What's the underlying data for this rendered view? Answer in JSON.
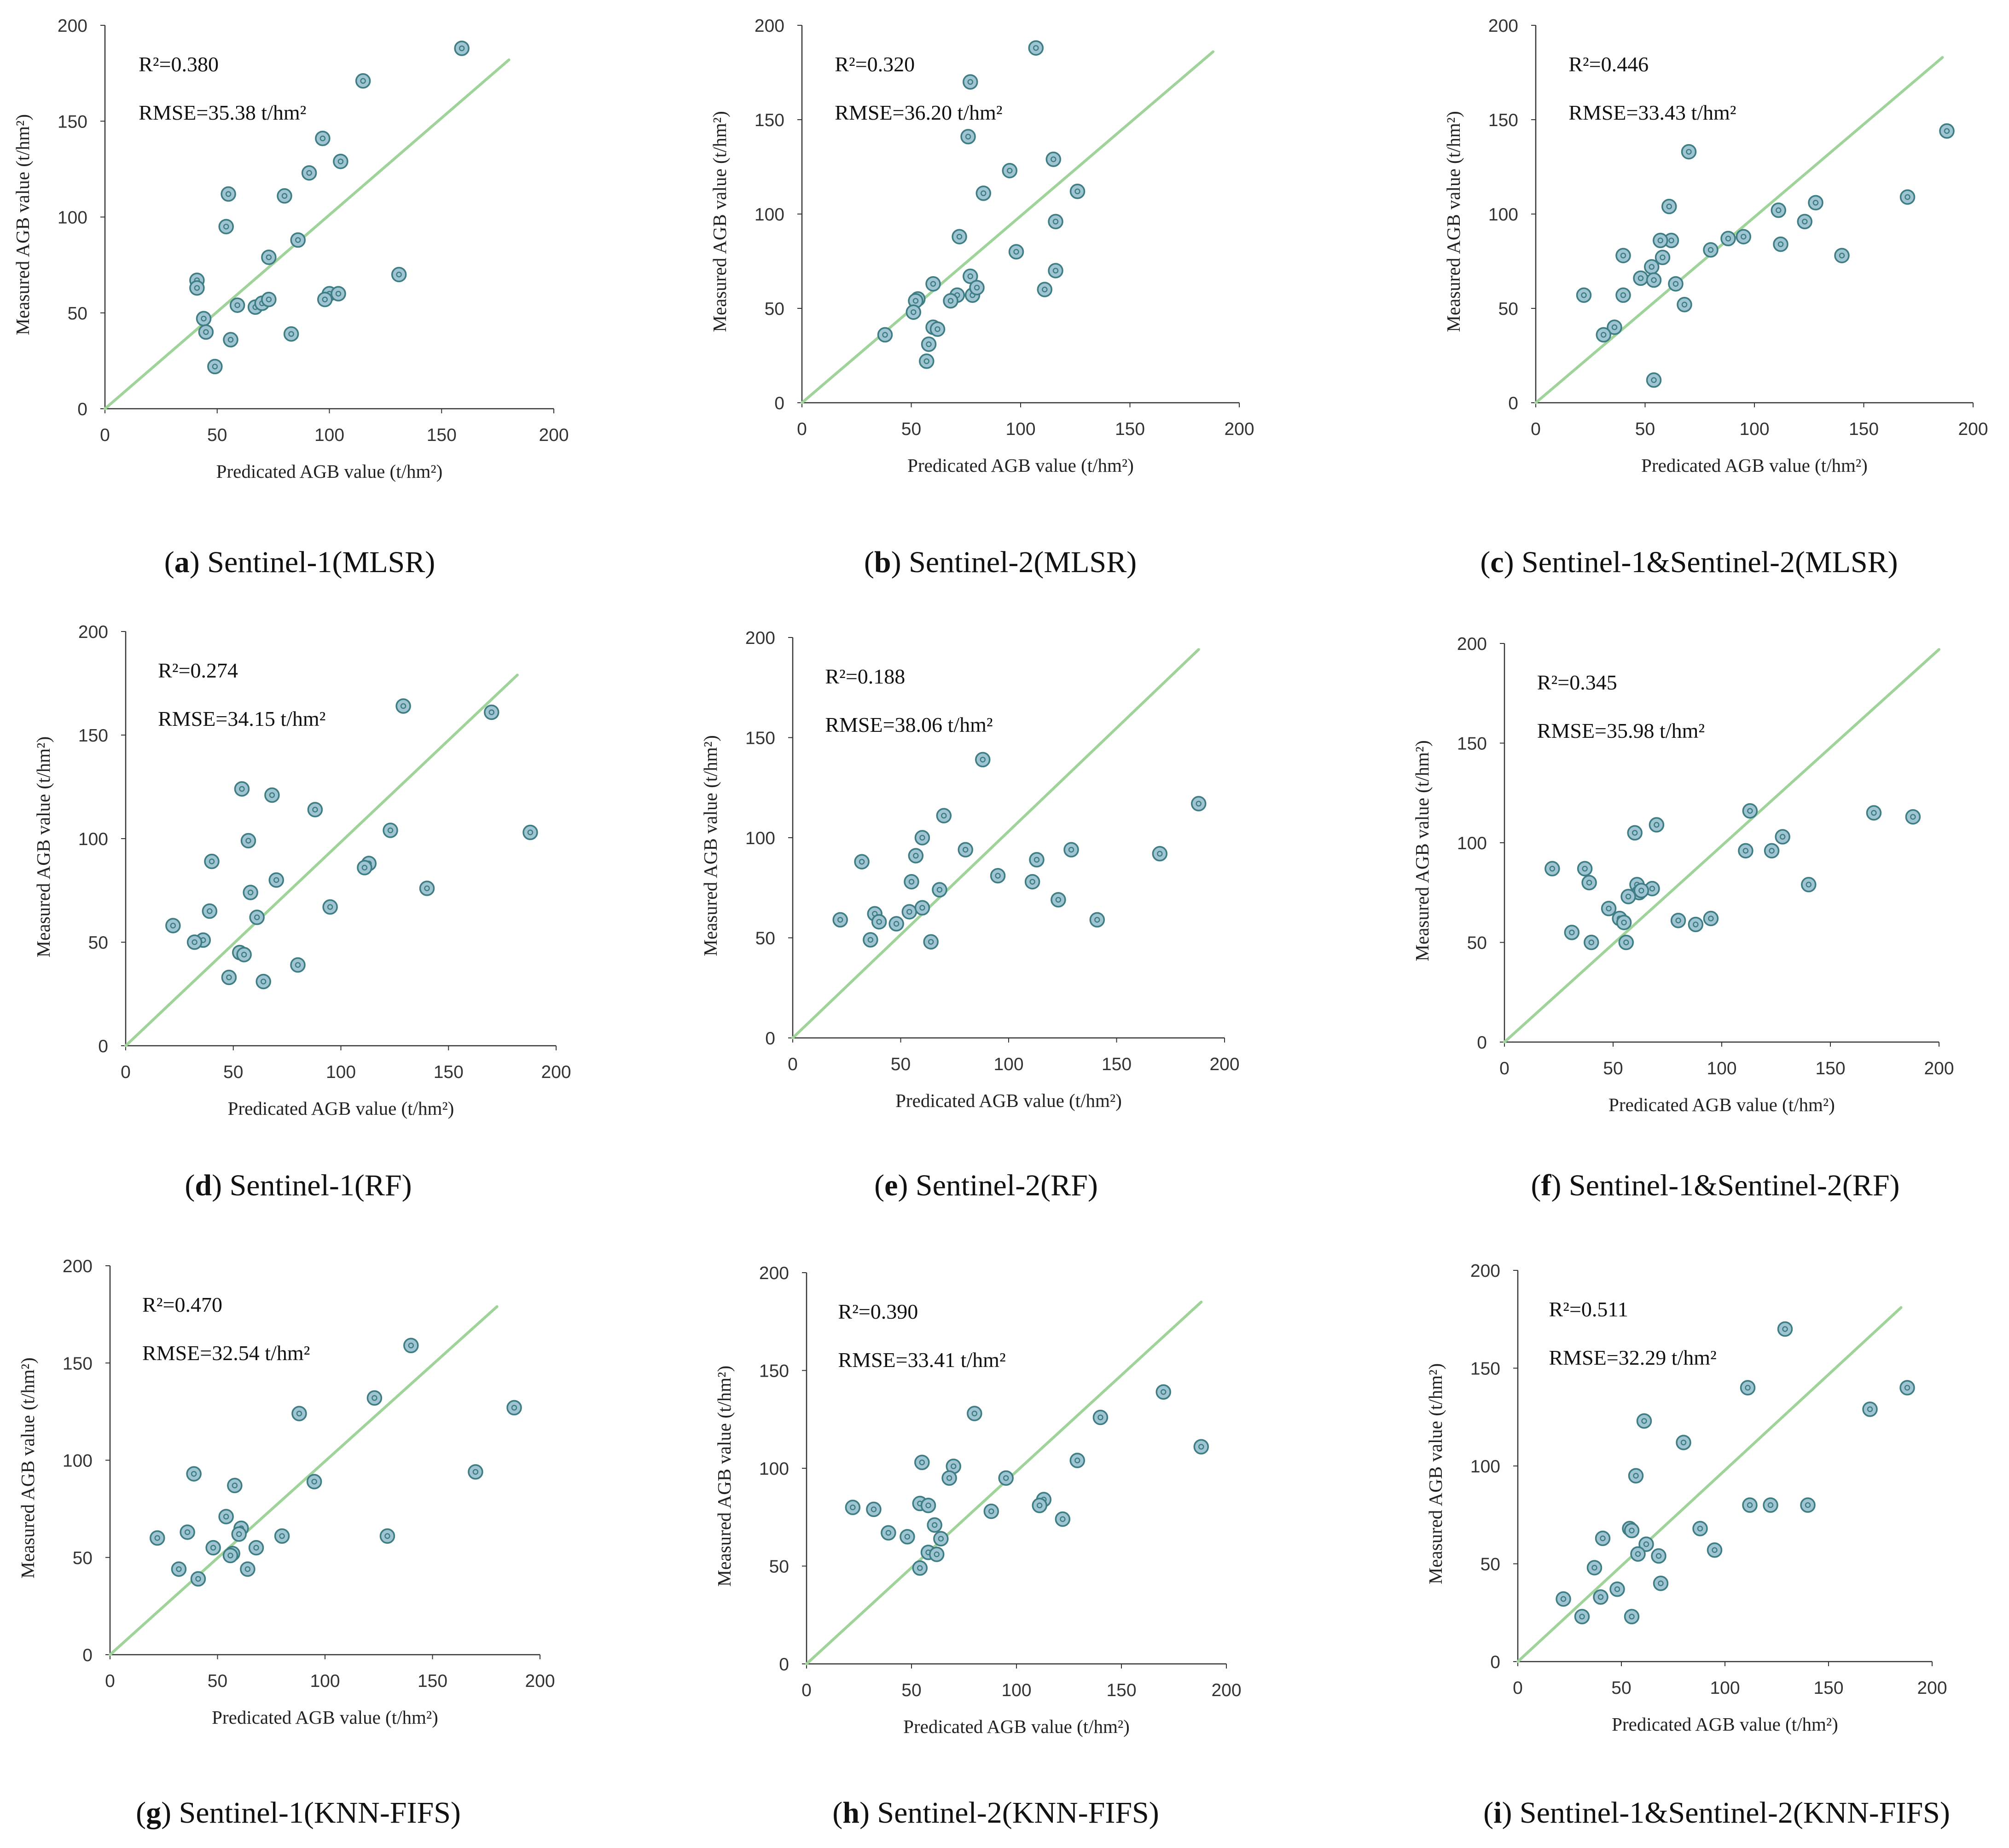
{
  "figure": {
    "colors": {
      "fit_line": "#9fd39a",
      "point_fill": "#9fc5d3",
      "point_stroke": "#3d7d83",
      "axis": "#333333"
    },
    "marker_icon": "double-circle"
  },
  "chart_data": [
    {
      "type": "scatter",
      "caption_letter": "a",
      "caption_text": "Sentinel-1(MLSR)",
      "xlabel": "Predicated AGB value (t/hm²)",
      "ylabel": "Measured AGB value (t/hm²)",
      "xlim": [
        0,
        200
      ],
      "ylim": [
        0,
        200
      ],
      "xticks": [
        "0",
        "50",
        "100",
        "150",
        "200"
      ],
      "yticks": [
        "0",
        "50",
        "100",
        "150",
        "200"
      ],
      "r2": "R²=0.380",
      "rmse": "RMSE=35.38 t/hm²",
      "fit_line": [
        [
          0,
          0
        ],
        [
          180,
          182
        ]
      ],
      "x": [
        159,
        115,
        97,
        91,
        105,
        55,
        80,
        54,
        86,
        73,
        41,
        41,
        44,
        59,
        67,
        70,
        73,
        100,
        104,
        98,
        131,
        45,
        56,
        83,
        49
      ],
      "y": [
        188,
        171,
        141,
        123,
        129,
        112,
        111,
        95,
        88,
        79,
        67,
        63,
        47,
        54,
        53,
        55,
        57,
        60,
        60,
        57,
        70,
        40,
        36,
        39,
        22
      ]
    },
    {
      "type": "scatter",
      "caption_letter": "b",
      "caption_text": "Sentinel-2(MLSR)",
      "xlabel": "Predicated AGB value (t/hm²)",
      "ylabel": "Measured AGB value (t/hm²)",
      "xlim": [
        0,
        200
      ],
      "ylim": [
        0,
        200
      ],
      "xticks": [
        "0",
        "50",
        "100",
        "150",
        "200"
      ],
      "yticks": [
        "0",
        "50",
        "100",
        "150",
        "200"
      ],
      "r2": "R²=0.320",
      "rmse": "RMSE=36.20 t/hm²",
      "fit_line": [
        [
          0,
          0
        ],
        [
          188,
          186
        ]
      ],
      "x": [
        107,
        77,
        76,
        95,
        115,
        126,
        83,
        72,
        116,
        98,
        77,
        60,
        53,
        52,
        51,
        71,
        68,
        78,
        80,
        111,
        116,
        60,
        62,
        38,
        58,
        57
      ],
      "y": [
        188,
        170,
        141,
        123,
        129,
        112,
        111,
        88,
        96,
        80,
        67,
        63,
        55,
        54,
        48,
        57,
        54,
        57,
        61,
        60,
        70,
        40,
        39,
        36,
        31,
        22
      ]
    },
    {
      "type": "scatter",
      "caption_letter": "c",
      "caption_text": "Sentinel-1&Sentinel-2(MLSR)",
      "xlabel": "Predicated AGB value (t/hm²)",
      "ylabel": "Measured AGB value (t/hm²)",
      "xlim": [
        0,
        200
      ],
      "ylim": [
        0,
        200
      ],
      "xticks": [
        "0",
        "50",
        "100",
        "150",
        "200"
      ],
      "yticks": [
        "0",
        "50",
        "100",
        "150",
        "200"
      ],
      "r2": "R²=0.446",
      "rmse": "RMSE=33.43 t/hm²",
      "fit_line": [
        [
          0,
          0
        ],
        [
          186,
          183
        ]
      ],
      "x": [
        188,
        70,
        170,
        111,
        128,
        123,
        112,
        140,
        95,
        88,
        80,
        61,
        62,
        57,
        58,
        40,
        40,
        48,
        53,
        54,
        64,
        22,
        68,
        36,
        31,
        54
      ],
      "y": [
        144,
        133,
        109,
        102,
        106,
        96,
        84,
        78,
        88,
        87,
        81,
        104,
        86,
        86,
        77,
        78,
        57,
        66,
        72,
        65,
        63,
        57,
        52,
        40,
        36,
        12
      ]
    },
    {
      "type": "scatter",
      "caption_letter": "d",
      "caption_text": "Sentinel-1(RF)",
      "xlabel": "Predicated AGB value (t/hm²)",
      "ylabel": "Measured AGB value (t/hm²)",
      "xlim": [
        0,
        200
      ],
      "ylim": [
        0,
        200
      ],
      "xticks": [
        "0",
        "50",
        "100",
        "150",
        "200"
      ],
      "yticks": [
        "0",
        "50",
        "100",
        "150",
        "200"
      ],
      "r2": "R²=0.274",
      "rmse": "RMSE=34.15 t/hm²",
      "fit_line": [
        [
          0,
          0
        ],
        [
          182,
          179
        ]
      ],
      "x": [
        129,
        170,
        54,
        68,
        88,
        123,
        188,
        113,
        111,
        57,
        40,
        140,
        70,
        39,
        58,
        61,
        95,
        22,
        36,
        32,
        53,
        55,
        80,
        48,
        64
      ],
      "y": [
        164,
        161,
        124,
        121,
        114,
        104,
        103,
        88,
        86,
        99,
        89,
        76,
        80,
        65,
        74,
        62,
        67,
        58,
        51,
        50,
        45,
        44,
        39,
        33,
        31
      ]
    },
    {
      "type": "scatter",
      "caption_letter": "e",
      "caption_text": "Sentinel-2(RF)",
      "xlabel": "Predicated AGB value (t/hm²)",
      "ylabel": "Measured AGB value (t/hm²)",
      "xlim": [
        0,
        200
      ],
      "ylim": [
        0,
        200
      ],
      "xticks": [
        "0",
        "50",
        "100",
        "150",
        "200"
      ],
      "yticks": [
        "0",
        "50",
        "100",
        "150",
        "200"
      ],
      "r2": "R²=0.188",
      "rmse": "RMSE=38.06 t/hm²",
      "fit_line": [
        [
          0,
          0
        ],
        [
          188,
          194
        ]
      ],
      "x": [
        88,
        188,
        70,
        60,
        80,
        113,
        129,
        170,
        32,
        57,
        55,
        95,
        111,
        68,
        123,
        141,
        22,
        38,
        40,
        48,
        54,
        60,
        36,
        64
      ],
      "y": [
        139,
        117,
        111,
        100,
        94,
        89,
        94,
        92,
        88,
        91,
        78,
        81,
        78,
        74,
        69,
        59,
        59,
        62,
        58,
        57,
        63,
        65,
        49,
        48
      ]
    },
    {
      "type": "scatter",
      "caption_letter": "f",
      "caption_text": "Sentinel-1&Sentinel-2(RF)",
      "xlabel": "Predicated AGB value (t/hm²)",
      "ylabel": "Measured AGB value (t/hm²)",
      "xlim": [
        0,
        200
      ],
      "ylim": [
        0,
        200
      ],
      "xticks": [
        "0",
        "50",
        "100",
        "150",
        "200"
      ],
      "yticks": [
        "0",
        "50",
        "100",
        "150",
        "200"
      ],
      "r2": "R²=0.345",
      "rmse": "RMSE=35.98 t/hm²",
      "fit_line": [
        [
          0,
          0
        ],
        [
          200,
          197
        ]
      ],
      "x": [
        113,
        170,
        188,
        70,
        60,
        22,
        37,
        39,
        111,
        123,
        128,
        140,
        61,
        68,
        62,
        63,
        57,
        48,
        53,
        55,
        31,
        40,
        56,
        80,
        88,
        95
      ],
      "y": [
        116,
        115,
        113,
        109,
        105,
        87,
        87,
        80,
        96,
        96,
        103,
        79,
        79,
        77,
        75,
        76,
        73,
        67,
        62,
        60,
        55,
        50,
        50,
        61,
        59,
        62
      ]
    },
    {
      "type": "scatter",
      "caption_letter": "g",
      "caption_text": "Sentinel-1(KNN-FIFS)",
      "xlabel": "Predicated AGB value (t/hm²)",
      "ylabel": "Measured AGB value (t/hm²)",
      "xlim": [
        0,
        200
      ],
      "ylim": [
        0,
        200
      ],
      "xticks": [
        "0",
        "50",
        "100",
        "150",
        "200"
      ],
      "yticks": [
        "0",
        "50",
        "100",
        "150",
        "200"
      ],
      "r2": "R²=0.470",
      "rmse": "RMSE=32.54 t/hm²",
      "fit_line": [
        [
          0,
          0
        ],
        [
          180,
          179
        ]
      ],
      "x": [
        140,
        123,
        188,
        88,
        170,
        95,
        39,
        58,
        54,
        61,
        36,
        60,
        80,
        22,
        48,
        57,
        56,
        68,
        64,
        32,
        129,
        41
      ],
      "y": [
        159,
        132,
        127,
        124,
        94,
        89,
        93,
        87,
        71,
        65,
        63,
        62,
        61,
        60,
        55,
        52,
        51,
        55,
        44,
        44,
        61,
        39
      ]
    },
    {
      "type": "scatter",
      "caption_letter": "h",
      "caption_text": "Sentinel-2(KNN-FIFS)",
      "xlabel": "Predicated AGB value (t/hm²)",
      "ylabel": "Measured AGB value (t/hm²)",
      "xlim": [
        0,
        200
      ],
      "ylim": [
        0,
        200
      ],
      "xticks": [
        "0",
        "50",
        "100",
        "150",
        "200"
      ],
      "yticks": [
        "0",
        "50",
        "100",
        "150",
        "200"
      ],
      "r2": "R²=0.390",
      "rmse": "RMSE=33.41 t/hm²",
      "fit_line": [
        [
          0,
          0
        ],
        [
          188,
          185
        ]
      ],
      "x": [
        170,
        80,
        140,
        188,
        129,
        55,
        70,
        68,
        95,
        22,
        32,
        54,
        58,
        113,
        111,
        88,
        122,
        61,
        39,
        48,
        64,
        58,
        62,
        54
      ],
      "y": [
        139,
        128,
        126,
        111,
        104,
        103,
        101,
        95,
        95,
        80,
        79,
        82,
        81,
        84,
        81,
        78,
        74,
        71,
        67,
        65,
        64,
        57,
        56,
        49
      ]
    },
    {
      "type": "scatter",
      "caption_letter": "i",
      "caption_text": "Sentinel-1&Sentinel-2(KNN-FIFS)",
      "xlabel": "Predicated AGB value (t/hm²)",
      "ylabel": "Measured AGB value (t/hm²)",
      "xlim": [
        0,
        200
      ],
      "ylim": [
        0,
        200
      ],
      "xticks": [
        "0",
        "50",
        "100",
        "150",
        "200"
      ],
      "yticks": [
        "0",
        "50",
        "100",
        "150",
        "200"
      ],
      "r2": "R²=0.511",
      "rmse": "RMSE=32.29 t/hm²",
      "fit_line": [
        [
          0,
          0
        ],
        [
          185,
          181
        ]
      ],
      "x": [
        129,
        111,
        188,
        170,
        61,
        80,
        57,
        112,
        122,
        140,
        54,
        55,
        88,
        41,
        95,
        37,
        62,
        58,
        68,
        48,
        40,
        22,
        69,
        31,
        55
      ],
      "y": [
        170,
        140,
        140,
        129,
        123,
        112,
        95,
        80,
        80,
        80,
        68,
        67,
        68,
        63,
        57,
        48,
        60,
        55,
        54,
        37,
        33,
        32,
        40,
        23,
        23
      ]
    }
  ]
}
